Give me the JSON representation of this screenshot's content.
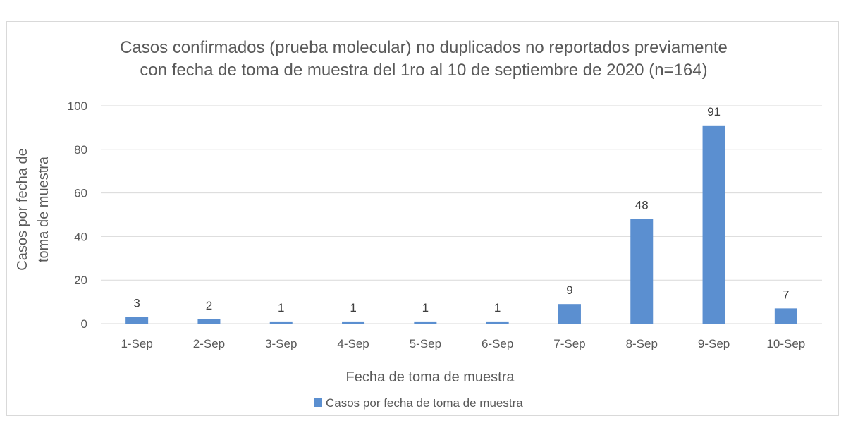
{
  "chart_data": {
    "type": "bar",
    "title_lines": [
      "Casos confirmados (prueba molecular) no duplicados no reportados previamente",
      "con fecha de toma de muestra del 1ro al 10 de septiembre de 2020 (n=164)"
    ],
    "categories": [
      "1-Sep",
      "2-Sep",
      "3-Sep",
      "4-Sep",
      "5-Sep",
      "6-Sep",
      "7-Sep",
      "8-Sep",
      "9-Sep",
      "10-Sep"
    ],
    "series": [
      {
        "name": "Casos por fecha de toma de muestra",
        "values": [
          3,
          2,
          1,
          1,
          1,
          1,
          9,
          48,
          91,
          7
        ],
        "color": "#5b8fd0"
      }
    ],
    "xlabel": "Fecha de toma de muestra",
    "ylabel_lines": [
      "Casos por fecha de",
      "toma de muestra"
    ],
    "ylim": [
      0,
      100
    ],
    "yticks": [
      0,
      20,
      40,
      60,
      80,
      100
    ],
    "grid": true,
    "legend_position": "bottom",
    "colors": {
      "gridline": "#d9d9d9",
      "text": "#595959"
    }
  }
}
